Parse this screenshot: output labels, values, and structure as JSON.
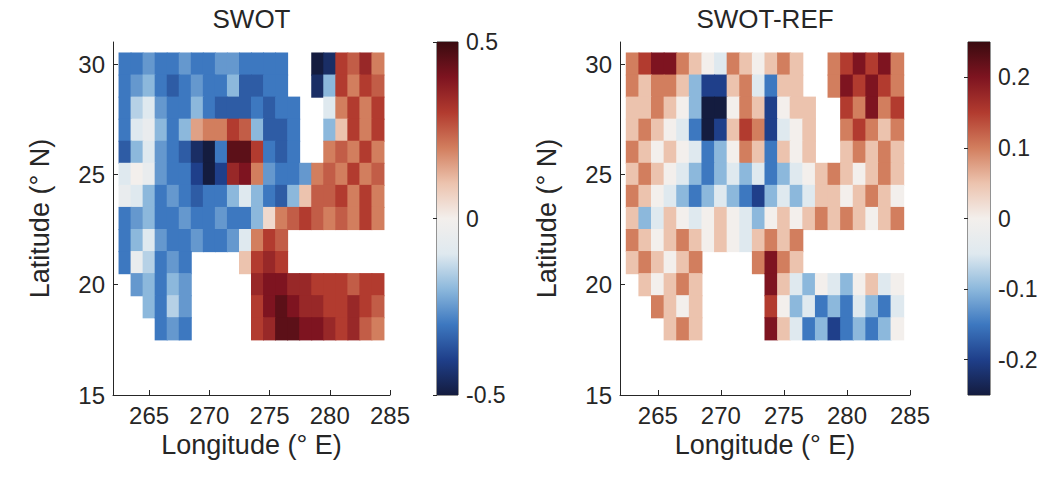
{
  "chart_data": [
    {
      "type": "scatter",
      "title": "SWOT",
      "xlabel": "Longitude (° E)",
      "ylabel": "Latitude (° N)",
      "xlim": [
        262,
        285
      ],
      "xticks": [
        265,
        270,
        275,
        280,
        285
      ],
      "ylim": [
        15,
        31
      ],
      "yticks": [
        15,
        20,
        25,
        30
      ],
      "grid": false,
      "x": [
        263,
        264,
        265,
        266,
        267,
        268,
        269,
        270,
        271,
        272,
        273,
        274,
        275,
        276,
        277,
        278,
        279,
        280,
        281,
        282,
        283,
        284
      ],
      "y": [
        30,
        29,
        28,
        27,
        26,
        25,
        24,
        23,
        22,
        21,
        20,
        19,
        18
      ],
      "values": [
        [
          -0.3,
          -0.3,
          -0.25,
          -0.3,
          -0.3,
          -0.25,
          -0.3,
          -0.3,
          -0.25,
          -0.25,
          -0.3,
          -0.3,
          -0.3,
          -0.3,
          null,
          null,
          -0.5,
          -0.45,
          0.3,
          0.25,
          0.35,
          0.2
        ],
        [
          -0.3,
          -0.25,
          -0.2,
          -0.3,
          -0.35,
          -0.3,
          -0.25,
          -0.3,
          -0.3,
          -0.2,
          -0.35,
          -0.35,
          -0.3,
          -0.3,
          null,
          null,
          -0.45,
          -0.2,
          0.3,
          0.2,
          0.3,
          0.25
        ],
        [
          -0.3,
          -0.15,
          -0.1,
          -0.25,
          -0.3,
          -0.3,
          -0.2,
          -0.3,
          -0.35,
          -0.35,
          -0.35,
          -0.3,
          -0.35,
          -0.3,
          -0.3,
          null,
          null,
          -0.1,
          0.2,
          0.3,
          0.2,
          0.3
        ],
        [
          -0.3,
          -0.1,
          -0.05,
          -0.2,
          -0.3,
          -0.2,
          0.15,
          0.2,
          0.2,
          0.3,
          0.25,
          -0.2,
          -0.35,
          -0.35,
          -0.3,
          null,
          null,
          -0.2,
          0.1,
          0.3,
          0.2,
          0.3
        ],
        [
          -0.35,
          -0.2,
          -0.1,
          -0.25,
          -0.3,
          -0.35,
          -0.45,
          -0.5,
          -0.3,
          0.45,
          0.45,
          0.3,
          -0.3,
          -0.35,
          -0.3,
          null,
          null,
          0.2,
          0.25,
          0.2,
          0.3,
          0.2
        ],
        [
          -0.1,
          0,
          -0.05,
          -0.25,
          -0.3,
          -0.3,
          -0.4,
          -0.5,
          -0.4,
          0.35,
          0.4,
          0.2,
          -0.25,
          -0.3,
          -0.3,
          -0.25,
          0.2,
          0.25,
          0.2,
          0.3,
          0.2,
          0.25
        ],
        [
          -0.05,
          -0.1,
          -0.2,
          -0.3,
          -0.25,
          -0.3,
          -0.35,
          -0.3,
          -0.3,
          -0.2,
          -0.1,
          -0.2,
          -0.3,
          -0.35,
          -0.2,
          0.1,
          0.25,
          0.25,
          0.3,
          0.2,
          0.3,
          0.2
        ],
        [
          -0.3,
          -0.25,
          -0.2,
          -0.3,
          -0.3,
          -0.25,
          -0.3,
          -0.3,
          -0.25,
          -0.3,
          -0.3,
          -0.2,
          0.05,
          0.2,
          0.25,
          0.3,
          0.25,
          0.2,
          0.25,
          0.2,
          0.3,
          0.2
        ],
        [
          -0.3,
          -0.2,
          -0.1,
          -0.25,
          -0.3,
          -0.3,
          -0.25,
          -0.3,
          -0.3,
          -0.25,
          -0.1,
          0.2,
          0.3,
          0.25,
          null,
          null,
          null,
          null,
          null,
          null,
          null,
          null
        ],
        [
          -0.3,
          -0.05,
          -0.15,
          -0.3,
          -0.25,
          -0.3,
          null,
          null,
          null,
          null,
          0.1,
          0.3,
          0.35,
          0.3,
          null,
          null,
          null,
          null,
          null,
          null,
          null,
          null
        ],
        [
          null,
          -0.25,
          -0.2,
          -0.3,
          -0.2,
          -0.25,
          null,
          null,
          null,
          null,
          null,
          0.35,
          0.4,
          0.4,
          0.35,
          0.35,
          0.3,
          0.3,
          0.3,
          0.25,
          0.3,
          0.3
        ],
        [
          null,
          null,
          -0.2,
          -0.3,
          -0.15,
          -0.25,
          null,
          null,
          null,
          null,
          null,
          0.3,
          0.4,
          0.45,
          0.4,
          0.35,
          0.35,
          0.3,
          0.3,
          0.35,
          0.3,
          0.25
        ],
        [
          null,
          null,
          null,
          -0.3,
          -0.25,
          -0.3,
          null,
          null,
          null,
          null,
          null,
          0.3,
          0.35,
          0.45,
          0.45,
          0.4,
          0.4,
          0.35,
          0.3,
          0.35,
          0.25,
          0.2
        ]
      ],
      "colorbar": {
        "lim": [
          -0.5,
          0.5
        ],
        "ticks": [
          -0.5,
          0,
          0.5
        ]
      }
    },
    {
      "type": "scatter",
      "title": "SWOT-REF",
      "xlabel": "Longitude (° E)",
      "ylabel": "Latitude (° N)",
      "xlim": [
        262,
        285
      ],
      "xticks": [
        265,
        270,
        275,
        280,
        285
      ],
      "ylim": [
        15,
        31
      ],
      "yticks": [
        15,
        20,
        25,
        30
      ],
      "grid": false,
      "x": [
        263,
        264,
        265,
        266,
        267,
        268,
        269,
        270,
        271,
        272,
        273,
        274,
        275,
        276,
        277,
        278,
        279,
        280,
        281,
        282,
        283,
        284
      ],
      "y": [
        30,
        29,
        28,
        27,
        26,
        25,
        24,
        23,
        22,
        21,
        20,
        19,
        18
      ],
      "values": [
        [
          0.1,
          0.15,
          0.2,
          0.2,
          0.1,
          0.05,
          0,
          -0.05,
          0.1,
          0.05,
          0,
          0.05,
          0.1,
          0.05,
          null,
          null,
          0.1,
          0.15,
          0.2,
          0.15,
          0.2,
          0.1
        ],
        [
          0.1,
          0.05,
          0.1,
          0.1,
          0.05,
          -0.1,
          -0.2,
          -0.2,
          0.05,
          0.1,
          -0.05,
          -0.15,
          0.05,
          0.05,
          null,
          null,
          0.1,
          0.2,
          0.15,
          0.2,
          0.15,
          0.1
        ],
        [
          0.05,
          0.05,
          0.1,
          0.05,
          0,
          -0.1,
          -0.25,
          -0.25,
          0,
          0.1,
          0.05,
          -0.2,
          0,
          0.05,
          0.05,
          null,
          null,
          0.15,
          0.1,
          0.2,
          0.1,
          0.15
        ],
        [
          0.05,
          0.1,
          0.05,
          0,
          -0.05,
          -0.15,
          -0.25,
          -0.2,
          0.05,
          0.15,
          0.1,
          -0.2,
          -0.05,
          0,
          0.05,
          null,
          null,
          0.1,
          0.15,
          0.1,
          0.05,
          0.1
        ],
        [
          0.1,
          0.05,
          0,
          0.05,
          0,
          -0.05,
          -0.15,
          -0.1,
          0,
          0.1,
          0.05,
          -0.15,
          0.05,
          0,
          0.05,
          null,
          null,
          0.05,
          0.1,
          0.05,
          0.1,
          0.05
        ],
        [
          0.05,
          0.1,
          0.05,
          0,
          -0.05,
          -0.1,
          -0.15,
          -0.1,
          -0.05,
          -0.1,
          -0.05,
          -0.15,
          -0.1,
          -0.05,
          0,
          0.05,
          0.1,
          0.05,
          0,
          0.05,
          0.1,
          0.05
        ],
        [
          0.1,
          0.05,
          0,
          -0.05,
          -0.1,
          -0.15,
          -0.1,
          -0.05,
          -0.1,
          -0.15,
          -0.2,
          -0.1,
          -0.05,
          -0.1,
          -0.05,
          0.05,
          0.05,
          0,
          0.05,
          0.1,
          0.05,
          0
        ],
        [
          0.05,
          -0.1,
          -0.05,
          0.05,
          0,
          -0.05,
          0,
          0.05,
          0,
          -0.05,
          -0.1,
          0,
          0.05,
          0,
          0.05,
          0.1,
          0.05,
          0.1,
          0.05,
          0,
          0.05,
          0.1
        ],
        [
          0.1,
          0.05,
          0,
          0.05,
          0.1,
          0.05,
          0,
          0.05,
          0,
          -0.05,
          0.05,
          0.1,
          0.05,
          0.1,
          null,
          null,
          null,
          null,
          null,
          null,
          null,
          null
        ],
        [
          0.05,
          0.1,
          0.05,
          0,
          0.05,
          0.1,
          null,
          null,
          null,
          null,
          0.1,
          0.2,
          0.1,
          0.05,
          null,
          null,
          null,
          null,
          null,
          null,
          null,
          null
        ],
        [
          null,
          0.05,
          0,
          0.05,
          0.1,
          0.05,
          null,
          null,
          null,
          null,
          null,
          0.2,
          0.05,
          -0.05,
          -0.1,
          0,
          -0.05,
          -0.1,
          0,
          0.05,
          -0.05,
          0
        ],
        [
          null,
          null,
          0.1,
          0.05,
          0,
          0.05,
          null,
          null,
          null,
          null,
          null,
          0.15,
          0,
          -0.1,
          -0.05,
          -0.15,
          -0.1,
          -0.15,
          -0.05,
          -0.1,
          -0.15,
          -0.05
        ],
        [
          null,
          null,
          null,
          0.05,
          0.1,
          0.05,
          null,
          null,
          null,
          null,
          null,
          0.2,
          0.05,
          -0.05,
          -0.15,
          -0.1,
          -0.2,
          -0.15,
          -0.1,
          -0.15,
          -0.1,
          0
        ]
      ],
      "colorbar": {
        "lim": [
          -0.25,
          0.25
        ],
        "ticks": [
          -0.2,
          -0.1,
          0,
          0.1,
          0.2
        ]
      }
    }
  ]
}
